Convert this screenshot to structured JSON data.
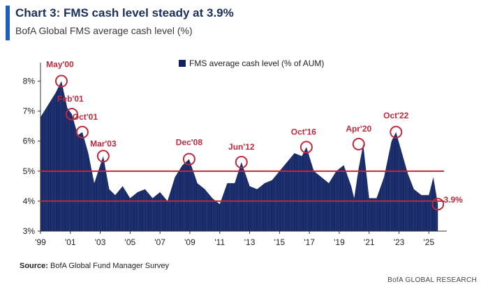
{
  "header": {
    "title": "Chart 3: FMS cash level steady at 3.9%",
    "subtitle": "BofA Global FMS average cash level (%)"
  },
  "footer": {
    "source_label": "Source:",
    "source_text": "BofA Global Fund Manager Survey",
    "brand": "BofA GLOBAL RESEARCH"
  },
  "colors": {
    "bar": "#0f2263",
    "reference_line": "#c0283d",
    "annotation": "#c0283d",
    "title": "#1b2f5c",
    "accent": "#1f5fb8"
  },
  "chart_data": {
    "type": "bar",
    "title": "Chart 3: FMS cash level steady at 3.9%",
    "subtitle": "BofA Global FMS average cash level (%)",
    "legend": {
      "label": "FMS average cash level (% of AUM)",
      "position": "top-center"
    },
    "ylim": [
      3,
      8.5
    ],
    "yticks": [
      3,
      4,
      5,
      6,
      7,
      8
    ],
    "ytick_labels": [
      "3%",
      "4%",
      "5%",
      "6%",
      "7%",
      "8%"
    ],
    "xlim": [
      1999.0,
      2026.2
    ],
    "xticks": [
      1999,
      2001,
      2003,
      2005,
      2007,
      2009,
      2011,
      2013,
      2015,
      2017,
      2019,
      2021,
      2023,
      2025
    ],
    "xtick_labels": [
      "'99",
      "'01",
      "'03",
      "'05",
      "'07",
      "'09",
      "'11",
      "'13",
      "'15",
      "'17",
      "'19",
      "'21",
      "'23",
      "'25"
    ],
    "reference_lines": [
      5.0,
      4.0
    ],
    "grid": false,
    "series": [
      {
        "name": "FMS average cash level (% of AUM)",
        "x": [
          1999.0,
          1999.5,
          2000.0,
          2000.4,
          2000.8,
          2001.1,
          2001.5,
          2001.8,
          2002.2,
          2002.6,
          2003.0,
          2003.2,
          2003.6,
          2004.0,
          2004.5,
          2005.0,
          2005.5,
          2006.0,
          2006.5,
          2007.0,
          2007.5,
          2008.0,
          2008.5,
          2008.95,
          2009.5,
          2010.0,
          2010.5,
          2011.0,
          2011.5,
          2012.0,
          2012.45,
          2013.0,
          2013.5,
          2014.0,
          2014.5,
          2015.0,
          2015.5,
          2016.0,
          2016.5,
          2016.8,
          2017.3,
          2017.8,
          2018.3,
          2018.8,
          2019.3,
          2019.8,
          2020.0,
          2020.3,
          2020.6,
          2021.0,
          2021.5,
          2022.0,
          2022.5,
          2022.8,
          2023.2,
          2023.6,
          2024.0,
          2024.5,
          2025.0,
          2025.3,
          2025.6
        ],
        "values": [
          6.8,
          7.2,
          7.6,
          8.0,
          7.1,
          6.9,
          6.2,
          6.3,
          5.6,
          4.6,
          5.2,
          5.5,
          4.4,
          4.2,
          4.5,
          4.1,
          4.3,
          4.4,
          4.1,
          4.3,
          4.0,
          4.8,
          5.2,
          5.4,
          4.6,
          4.4,
          4.1,
          3.9,
          4.6,
          4.6,
          5.3,
          4.5,
          4.4,
          4.6,
          4.7,
          5.0,
          5.3,
          5.6,
          5.5,
          5.8,
          5.0,
          4.8,
          4.6,
          5.0,
          5.2,
          4.5,
          4.1,
          5.1,
          5.9,
          4.1,
          4.1,
          4.8,
          6.0,
          6.3,
          5.6,
          4.9,
          4.4,
          4.2,
          4.2,
          4.8,
          3.9
        ]
      }
    ],
    "annotations": [
      {
        "label": "May'00",
        "x": 2000.4,
        "y": 8.0
      },
      {
        "label": "Feb'01",
        "x": 2001.1,
        "y": 6.9
      },
      {
        "label": "Oct'01",
        "x": 2001.8,
        "y": 6.3
      },
      {
        "label": "Mar'03",
        "x": 2003.2,
        "y": 5.5
      },
      {
        "label": "Dec'08",
        "x": 2008.95,
        "y": 5.4
      },
      {
        "label": "Jun'12",
        "x": 2012.45,
        "y": 5.3
      },
      {
        "label": "Oct'16",
        "x": 2016.8,
        "y": 5.8
      },
      {
        "label": "Apr'20",
        "x": 2020.3,
        "y": 5.9
      },
      {
        "label": "Oct'22",
        "x": 2022.8,
        "y": 6.3
      },
      {
        "label": "3.9%",
        "x": 2025.6,
        "y": 3.9
      }
    ]
  }
}
